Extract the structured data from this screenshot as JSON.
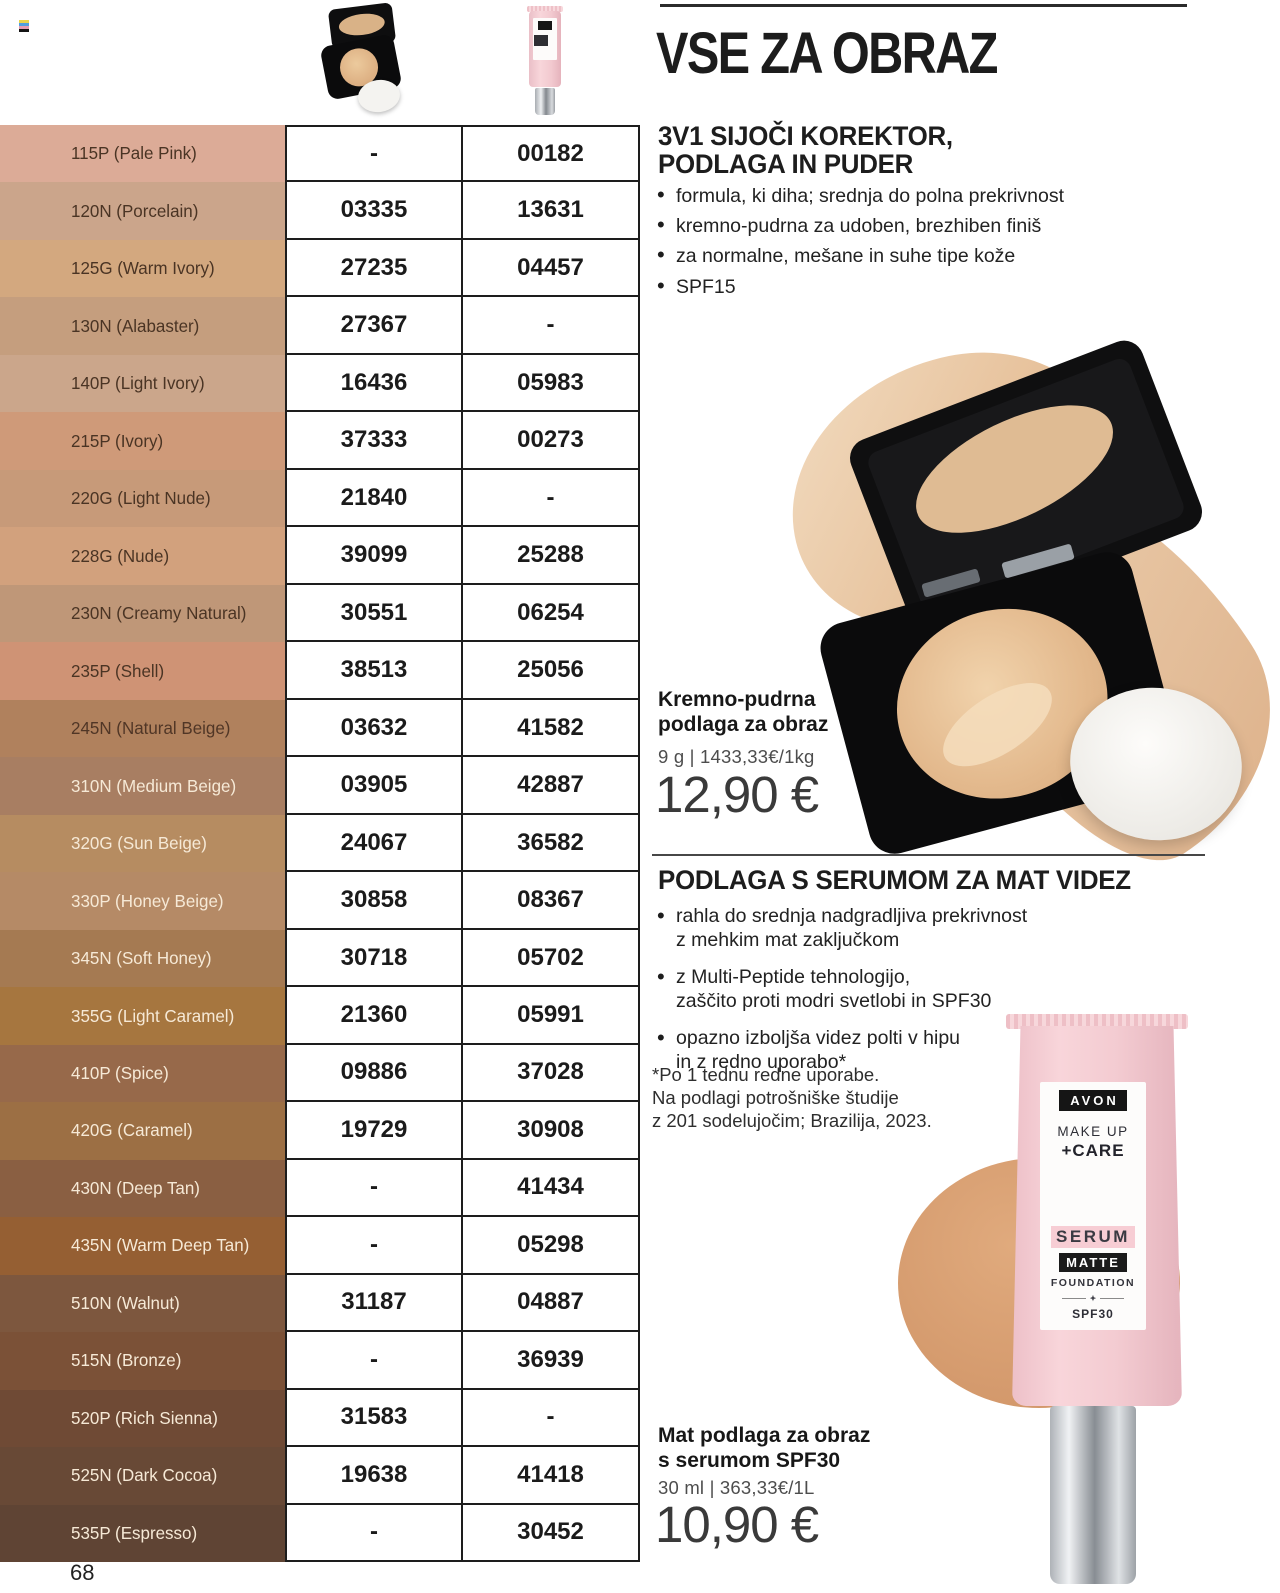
{
  "page": {
    "number": "68"
  },
  "title": "VSE ZA OBRAZ",
  "section1": {
    "heading_line1": "3V1 SIJOČI KOREKTOR,",
    "heading_line2": "PODLAGA IN PUDER",
    "bullets": [
      "formula, ki diha; srednja do polna prekrivnost",
      "kremno-pudrna za udoben, brezhiben finiš",
      "za normalne, mešane in suhe tipe kože",
      "SPF15"
    ],
    "product_name_line1": "Kremno-pudrna",
    "product_name_line2": "podlaga za obraz",
    "size_price": "9 g | 1433,33€/1kg",
    "price": "12,90 €"
  },
  "section2": {
    "heading": "PODLAGA S SERUMOM ZA MAT VIDEZ",
    "bullets": [
      [
        "rahla do srednja nadgradljiva prekrivnost",
        "z mehkim mat zaključkom"
      ],
      [
        "z Multi-Peptide tehnologijo,",
        "zaščito proti modri svetlobi in SPF30"
      ],
      [
        "opazno izboljša videz polti v hipu",
        "in z redno uporabo*"
      ]
    ],
    "footnote_lines": [
      "*Po 1 tednu redne uporabe.",
      "Na podlagi potrošniške študije",
      "z 201 sodelujočim; Brazilija, 2023."
    ],
    "product_name_line1": "Mat podlaga za obraz",
    "product_name_line2": "s serumom SPF30",
    "size_price": "30 ml | 363,33€/1L",
    "price": "10,90 €"
  },
  "tube_label": {
    "brand": "AVON",
    "line1": "MAKE UP",
    "line2": "+CARE",
    "serum": "SERUM",
    "matte": "MATTE",
    "foundation": "FOUNDATION",
    "spf": "SPF30"
  },
  "shade_table": {
    "columns": [
      "compact-powder-foundation",
      "serum-matte-foundation-tube"
    ],
    "rows": [
      {
        "shade": "115P (Pale Pink)",
        "swatch": "#dcab97",
        "fg": "#4a3424",
        "compact": "-",
        "tube": "00182"
      },
      {
        "shade": "120N (Porcelain)",
        "swatch": "#cba58b",
        "fg": "#4a3424",
        "compact": "03335",
        "tube": "13631"
      },
      {
        "shade": "125G (Warm Ivory)",
        "swatch": "#d3a87f",
        "fg": "#4a3424",
        "compact": "27235",
        "tube": "04457"
      },
      {
        "shade": "130N (Alabaster)",
        "swatch": "#c59e7e",
        "fg": "#4a3424",
        "compact": "27367",
        "tube": "-"
      },
      {
        "shade": "140P (Light Ivory)",
        "swatch": "#cba68b",
        "fg": "#4a3424",
        "compact": "16436",
        "tube": "05983"
      },
      {
        "shade": "215P (Ivory)",
        "swatch": "#cf9a79",
        "fg": "#4a3424",
        "compact": "37333",
        "tube": "00273"
      },
      {
        "shade": "220G (Light Nude)",
        "swatch": "#c79a79",
        "fg": "#4a3424",
        "compact": "21840",
        "tube": "-"
      },
      {
        "shade": "228G (Nude)",
        "swatch": "#d2a17d",
        "fg": "#4a3424",
        "compact": "39099",
        "tube": "25288"
      },
      {
        "shade": "230N (Creamy Natural)",
        "swatch": "#bf9778",
        "fg": "#4a3424",
        "compact": "30551",
        "tube": "06254"
      },
      {
        "shade": "235P (Shell)",
        "swatch": "#cf9375",
        "fg": "#4a3424",
        "compact": "38513",
        "tube": "25056"
      },
      {
        "shade": "245N (Natural Beige)",
        "swatch": "#b0815d",
        "fg": "#503626",
        "compact": "03632",
        "tube": "41582"
      },
      {
        "shade": "310N (Medium Beige)",
        "swatch": "#a87e62",
        "fg": "#f6e9d6",
        "compact": "03905",
        "tube": "42887"
      },
      {
        "shade": "320G (Sun Beige)",
        "swatch": "#b68c61",
        "fg": "#f6e9d6",
        "compact": "24067",
        "tube": "36582"
      },
      {
        "shade": "330P (Honey Beige)",
        "swatch": "#b58a66",
        "fg": "#f6e9d6",
        "compact": "30858",
        "tube": "08367"
      },
      {
        "shade": "345N (Soft Honey)",
        "swatch": "#a57a52",
        "fg": "#f6e9d6",
        "compact": "30718",
        "tube": "05702"
      },
      {
        "shade": "355G (Light Caramel)",
        "swatch": "#a6763f",
        "fg": "#f6e9d6",
        "compact": "21360",
        "tube": "05991"
      },
      {
        "shade": "410P (Spice)",
        "swatch": "#97694a",
        "fg": "#f6e9d6",
        "compact": "09886",
        "tube": "37028"
      },
      {
        "shade": "420G (Caramel)",
        "swatch": "#9c6f44",
        "fg": "#f6e9d6",
        "compact": "19729",
        "tube": "30908"
      },
      {
        "shade": "430N (Deep Tan)",
        "swatch": "#8a5f42",
        "fg": "#f6e9d6",
        "compact": "-",
        "tube": "41434"
      },
      {
        "shade": "435N (Warm Deep Tan)",
        "swatch": "#955f33",
        "fg": "#f6e9d6",
        "compact": "-",
        "tube": "05298"
      },
      {
        "shade": "510N (Walnut)",
        "swatch": "#7d573e",
        "fg": "#f6e9d6",
        "compact": "31187",
        "tube": "04887"
      },
      {
        "shade": "515N (Bronze)",
        "swatch": "#7b5137",
        "fg": "#f6e9d6",
        "compact": "-",
        "tube": "36939"
      },
      {
        "shade": "520P (Rich Sienna)",
        "swatch": "#6f4a35",
        "fg": "#f6e9d6",
        "compact": "31583",
        "tube": "-"
      },
      {
        "shade": "525N (Dark Cocoa)",
        "swatch": "#684936",
        "fg": "#f6e9d6",
        "compact": "19638",
        "tube": "41418"
      },
      {
        "shade": "535P (Espresso)",
        "swatch": "#5f4434",
        "fg": "#f6e9d6",
        "compact": "-",
        "tube": "30452"
      }
    ]
  }
}
